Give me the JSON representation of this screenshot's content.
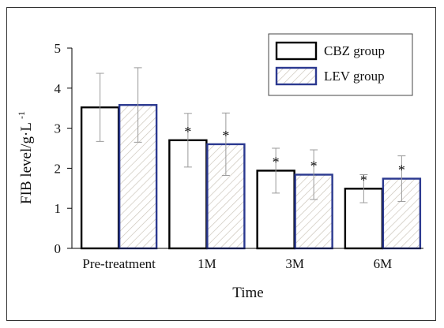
{
  "chart_data": {
    "type": "bar",
    "title": "",
    "xlabel": "Time",
    "ylabel": "FIB level/g·L",
    "ylabel_superscript": "-1",
    "categories": [
      "Pre-treatment",
      "1M",
      "3M",
      "6M"
    ],
    "ylim": [
      0,
      5
    ],
    "yticks": [
      0,
      1,
      2,
      3,
      4,
      5
    ],
    "grid": false,
    "legend_position": "top-right",
    "series": [
      {
        "name": "CBZ group",
        "values": [
          3.52,
          2.7,
          1.94,
          1.49
        ],
        "error": [
          0.85,
          0.67,
          0.56,
          0.35
        ],
        "significance": [
          "",
          "*",
          "*",
          "*"
        ],
        "edge_color": "#000000",
        "fill": "none"
      },
      {
        "name": "LEV group",
        "values": [
          3.58,
          2.6,
          1.84,
          1.74
        ],
        "error": [
          0.93,
          0.78,
          0.62,
          0.57
        ],
        "significance": [
          "",
          "*",
          "*",
          "*"
        ],
        "edge_color": "#2b3990",
        "fill": "hatched"
      }
    ]
  }
}
